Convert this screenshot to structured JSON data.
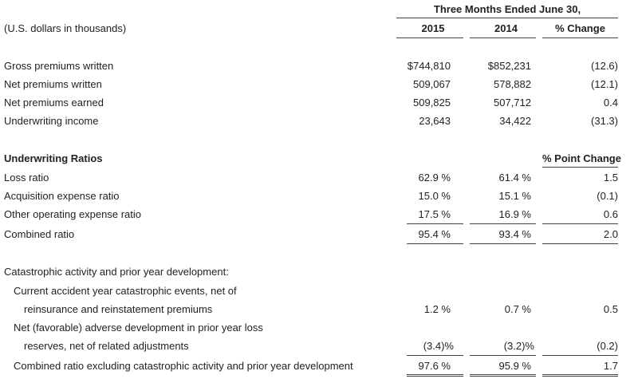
{
  "header": {
    "period_title": "Three Months Ended June 30,",
    "units_label": "(U.S. dollars in thousands)",
    "col_2015": "2015",
    "col_2014": "2014",
    "col_change": "% Change"
  },
  "financials": [
    {
      "label": "Gross premiums written",
      "v2015": "$744,810",
      "v2014": "$852,231",
      "change": "(12.6)"
    },
    {
      "label": "Net premiums written",
      "v2015": "509,067",
      "v2014": "578,882",
      "change": "(12.1)"
    },
    {
      "label": "Net premiums earned",
      "v2015": "509,825",
      "v2014": "507,712",
      "change": "0.4"
    },
    {
      "label": "Underwriting income",
      "v2015": "23,643",
      "v2014": "34,422",
      "change": "(31.3)"
    }
  ],
  "ratios": {
    "heading": "Underwriting Ratios",
    "change_heading": "% Point Change",
    "rows": [
      {
        "label": "Loss ratio",
        "v2015": "62.9 %",
        "v2014": "61.4 %",
        "change": "1.5"
      },
      {
        "label": "Acquisition expense ratio",
        "v2015": "15.0 %",
        "v2014": "15.1 %",
        "change": "(0.1)"
      },
      {
        "label": "Other operating expense ratio",
        "v2015": "17.5 %",
        "v2014": "16.9 %",
        "change": "0.6"
      },
      {
        "label": "Combined ratio",
        "v2015": "95.4 %",
        "v2014": "93.4 %",
        "change": "2.0"
      }
    ]
  },
  "catastrophic": {
    "heading": "Catastrophic activity and prior year development:",
    "current_line1": "Current accident year catastrophic events, net of",
    "current_line2": "reinsurance and reinstatement premiums",
    "current_v2015": "1.2 %",
    "current_v2014": "0.7 %",
    "current_change": "0.5",
    "net_line1": "Net (favorable) adverse development in prior year loss",
    "net_line2": "reserves, net of related adjustments",
    "net_v2015": "(3.4)%",
    "net_v2014": "(3.2)%",
    "net_change": "(0.2)",
    "excl_label": "Combined ratio excluding catastrophic activity and prior year development",
    "excl_v2015": "97.6 %",
    "excl_v2014": "95.9 %",
    "excl_change": "1.7"
  }
}
